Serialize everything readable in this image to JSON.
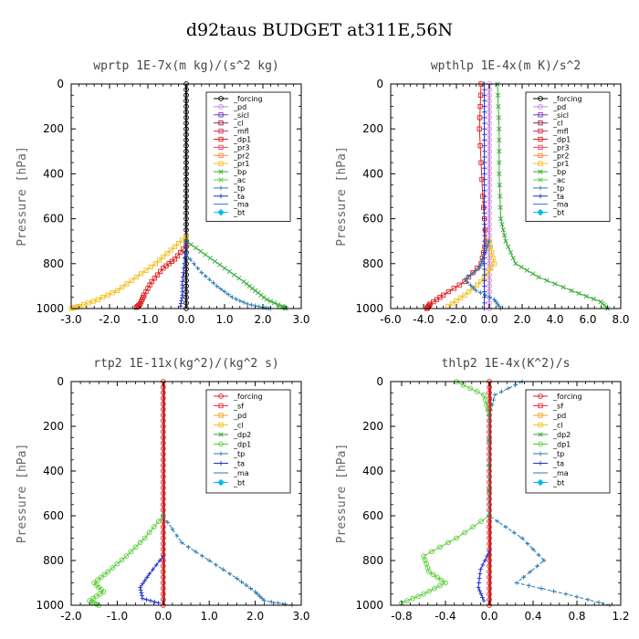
{
  "title": "d92taus  BUDGET at311E,56N",
  "chart_data": [
    {
      "type": "line",
      "title": "wprtp   1E-7x(m kg)/(s^2 kg)",
      "ylabel": "Pressure [hPa]",
      "xlim": [
        -3.0,
        3.0
      ],
      "ylim": [
        1000,
        0
      ],
      "xticks": [
        "-3.0",
        "-2.0",
        "-1.0",
        "0.0",
        "1.0",
        "2.0",
        "3.0"
      ],
      "yticks": [
        "0",
        "200",
        "400",
        "600",
        "800",
        "1000"
      ],
      "legend": [
        "_forcing",
        "_pd",
        "_sicl",
        "_cl",
        "_mfl",
        "_dp1",
        "_pr3",
        "_pr2",
        "_pr1",
        "_bp",
        "_ac",
        "_tp",
        "_ta",
        "_ma",
        "_bt"
      ],
      "legend_position": "top-right",
      "series": [
        {
          "name": "_forcing",
          "color": "#000000",
          "marker": "circle",
          "p": [
            0,
            1000
          ],
          "v": [
            0,
            0
          ]
        },
        {
          "name": "_dp1",
          "color": "#dd2222",
          "marker": "square",
          "p": [
            720,
            780,
            820,
            880,
            940,
            980,
            995
          ],
          "v": [
            0,
            -0.3,
            -0.6,
            -0.9,
            -1.1,
            -1.2,
            -1.3
          ]
        },
        {
          "name": "_pr1",
          "color": "#f0c020",
          "marker": "square",
          "p": [
            680,
            740,
            800,
            860,
            920,
            960,
            990,
            1000
          ],
          "v": [
            0,
            -0.4,
            -0.8,
            -1.3,
            -1.8,
            -2.3,
            -2.8,
            -3.0
          ]
        },
        {
          "name": "_bp",
          "color": "#33aa33",
          "marker": "cross",
          "p": [
            700,
            760,
            820,
            880,
            920,
            960,
            990,
            1000
          ],
          "v": [
            0,
            0.5,
            1.0,
            1.5,
            1.8,
            2.1,
            2.5,
            2.6
          ]
        },
        {
          "name": "_tp",
          "color": "#2a7ab0",
          "marker": "plus",
          "p": [
            760,
            840,
            900,
            950,
            980,
            995,
            1000
          ],
          "v": [
            0,
            0.4,
            0.8,
            1.2,
            1.6,
            2.0,
            2.2
          ]
        },
        {
          "name": "_ta",
          "color": "#2233cc",
          "marker": "plus",
          "p": [
            700,
            800,
            880,
            940,
            990
          ],
          "v": [
            0,
            -0.05,
            -0.1,
            -0.1,
            -0.15
          ]
        },
        {
          "name": "_ma",
          "color": "#444444",
          "marker": "none",
          "p": [
            0,
            1000
          ],
          "v": [
            0.02,
            0.02
          ]
        }
      ]
    },
    {
      "type": "line",
      "title": "wpthlp   1E-4x(m K)/s^2",
      "ylabel": "Pressure [hPa]",
      "xlim": [
        -6.0,
        8.0
      ],
      "ylim": [
        1000,
        0
      ],
      "xticks": [
        "-6.0",
        "-4.0",
        "-2.0",
        "0.0",
        "2.0",
        "4.0",
        "6.0",
        "8.0"
      ],
      "yticks": [
        "0",
        "200",
        "400",
        "600",
        "800",
        "1000"
      ],
      "legend": [
        "_forcing",
        "_pd",
        "_sicl",
        "_cl",
        "_mfl",
        "_dp1",
        "_pr3",
        "_pr2",
        "_pr1",
        "_bp",
        "_ac",
        "_tp",
        "_ta",
        "_ma",
        "_bt"
      ],
      "legend_position": "top-right",
      "series": [
        {
          "name": "_forcing",
          "color": "#cc88dd",
          "marker": "circle",
          "p": [
            0,
            1000
          ],
          "v": [
            0,
            0
          ]
        },
        {
          "name": "_dp1",
          "color": "#dd2222",
          "marker": "square",
          "p": [
            0,
            200,
            500,
            700,
            800,
            880,
            940,
            980,
            1000
          ],
          "v": [
            -0.5,
            -0.6,
            -0.4,
            -0.2,
            -0.5,
            -1.5,
            -2.8,
            -3.6,
            -3.8
          ]
        },
        {
          "name": "_pr1",
          "color": "#f0c020",
          "marker": "square",
          "p": [
            700,
            800,
            880,
            940,
            990
          ],
          "v": [
            0,
            0.3,
            -0.5,
            -1.5,
            -2.5
          ]
        },
        {
          "name": "_bp",
          "color": "#33aa33",
          "marker": "cross",
          "p": [
            0,
            200,
            400,
            600,
            700,
            800,
            860,
            920,
            970,
            1000
          ],
          "v": [
            0.5,
            0.6,
            0.6,
            0.7,
            1.0,
            1.6,
            3.0,
            5.0,
            6.8,
            7.2
          ]
        },
        {
          "name": "_tp",
          "color": "#2a7ab0",
          "marker": "plus",
          "p": [
            700,
            780,
            820,
            870,
            920,
            960,
            1000
          ],
          "v": [
            0,
            -0.4,
            -0.6,
            -1.5,
            -0.8,
            0.3,
            0.7
          ]
        },
        {
          "name": "_ta",
          "color": "#2233cc",
          "marker": "plus",
          "p": [
            0,
            1000
          ],
          "v": [
            -0.3,
            -0.3
          ]
        }
      ]
    },
    {
      "type": "line",
      "title": "rtp2   1E-11x(kg^2)/(kg^2 s)",
      "ylabel": "Pressure [hPa]",
      "xlim": [
        -2.0,
        3.0
      ],
      "ylim": [
        1000,
        0
      ],
      "xticks": [
        "-2.0",
        "-1.0",
        "0.0",
        "1.0",
        "2.0",
        "3.0"
      ],
      "yticks": [
        "0",
        "200",
        "400",
        "600",
        "800",
        "1000"
      ],
      "legend": [
        "_forcing",
        "_sf",
        "_pd",
        "_cl",
        "_dp2",
        "_dp1",
        "_tp",
        "_ta",
        "_ma",
        "_bt"
      ],
      "legend_position": "top-right",
      "series": [
        {
          "name": "_forcing",
          "color": "#dd2222",
          "marker": "circle",
          "p": [
            0,
            1000
          ],
          "v": [
            0,
            0
          ]
        },
        {
          "name": "_dp1",
          "color": "#55cc33",
          "marker": "circle",
          "p": [
            600,
            700,
            780,
            850,
            900,
            940,
            980,
            1000
          ],
          "v": [
            0,
            -0.4,
            -0.8,
            -1.2,
            -1.5,
            -1.3,
            -1.6,
            -1.4
          ]
        },
        {
          "name": "_tp",
          "color": "#2a7ab0",
          "marker": "plus",
          "p": [
            600,
            720,
            800,
            880,
            940,
            980,
            1000
          ],
          "v": [
            0,
            0.4,
            1.0,
            1.6,
            2.0,
            2.2,
            2.8
          ]
        },
        {
          "name": "_ta",
          "color": "#2233cc",
          "marker": "plus",
          "p": [
            780,
            860,
            920,
            970,
            990
          ],
          "v": [
            0,
            -0.3,
            -0.5,
            -0.45,
            -0.1
          ]
        },
        {
          "name": "_bt",
          "color": "#cc2222",
          "marker": "none",
          "p": [
            0,
            1000
          ],
          "v": [
            0.02,
            0.02
          ]
        }
      ]
    },
    {
      "type": "line",
      "title": "thlp2   1E-4x(K^2)/s",
      "ylabel": "Pressure [hPa]",
      "xlim": [
        -0.9,
        1.2
      ],
      "ylim": [
        1000,
        0
      ],
      "xticks": [
        "-0.8",
        "-0.4",
        "0.0",
        "0.4",
        "0.8",
        "1.2"
      ],
      "yticks": [
        "0",
        "200",
        "400",
        "600",
        "800",
        "1000"
      ],
      "legend": [
        "_forcing",
        "_sf",
        "_pd",
        "_cl",
        "_dp2",
        "_dp1",
        "_tp",
        "_ta",
        "_ma",
        "_bt"
      ],
      "legend_position": "top-right",
      "series": [
        {
          "name": "_forcing",
          "color": "#dd2222",
          "marker": "circle",
          "p": [
            0,
            1000
          ],
          "v": [
            0,
            0
          ]
        },
        {
          "name": "_dp1",
          "color": "#55cc33",
          "marker": "circle",
          "p": [
            0,
            60,
            150,
            600,
            700,
            780,
            850,
            900,
            950,
            990
          ],
          "v": [
            -0.3,
            -0.05,
            0,
            0,
            -0.3,
            -0.6,
            -0.55,
            -0.4,
            -0.6,
            -0.8
          ]
        },
        {
          "name": "_tp",
          "color": "#2a7ab0",
          "marker": "plus",
          "p": [
            0,
            60,
            150,
            600,
            700,
            800,
            900,
            950,
            1000
          ],
          "v": [
            0.3,
            0.05,
            0,
            0,
            0.3,
            0.5,
            0.25,
            0.7,
            1.1
          ]
        },
        {
          "name": "_ta",
          "color": "#2233cc",
          "marker": "plus",
          "p": [
            760,
            840,
            920,
            980
          ],
          "v": [
            0,
            -0.08,
            -0.1,
            -0.05
          ]
        },
        {
          "name": "_bt",
          "color": "#cc2222",
          "marker": "none",
          "p": [
            0,
            1000
          ],
          "v": [
            0.01,
            0.01
          ]
        }
      ]
    }
  ]
}
